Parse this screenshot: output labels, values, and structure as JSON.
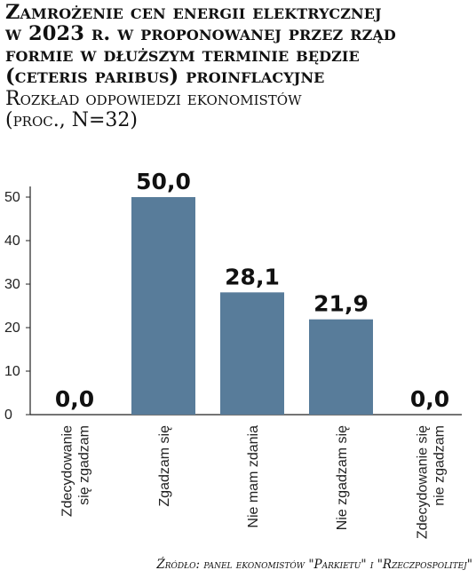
{
  "title_lines": [
    "Zamrożenie cen energii elektrycznej",
    "w 2023 r. w proponowanej przez rząd",
    "formie w dłuższym terminie będzie",
    "(ceteris paribus)  proinflacyjne"
  ],
  "subtitle_lines": [
    "Rozkład odpowiedzi ekonomistów",
    "(proc., N=32)"
  ],
  "source": "Źródło: panel ekonomistów \"Parkietu\" i \"Rzeczpospolitej\"",
  "colors": {
    "bar": "#587c9a",
    "axis": "#222222",
    "text": "#111111"
  },
  "chart_data": {
    "type": "bar",
    "title": "Zamrożenie cen energii elektrycznej w 2023 r. w proponowanej przez rząd formie w dłuższym terminie będzie (ceteris paribus)  proinflacyjne",
    "subtitle": "Rozkład odpowiedzi ekonomistów (proc., N=32)",
    "categories": [
      [
        "Zdecydowanie",
        "się zgadzam"
      ],
      [
        "Zgadzam się"
      ],
      [
        "Nie mam zdania"
      ],
      [
        "Nie zgadzam się"
      ],
      [
        "Zdecydowanie się",
        "nie zgadzam"
      ]
    ],
    "values": [
      0.0,
      50.0,
      28.1,
      21.9,
      0.0
    ],
    "value_labels": [
      "0,0",
      "50,0",
      "28,1",
      "21,9",
      "0,0"
    ],
    "yticks": [
      "0",
      "10",
      "20",
      "30",
      "40",
      "50"
    ],
    "ylim": [
      0,
      50
    ],
    "xlabel": "",
    "ylabel": "",
    "grid": false,
    "legend": "none"
  }
}
